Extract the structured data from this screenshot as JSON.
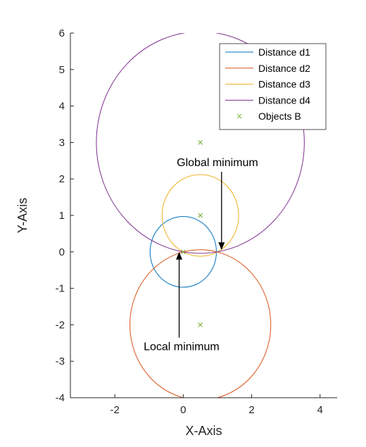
{
  "chart_data": {
    "type": "line",
    "title": "",
    "xlabel": "X-Axis",
    "ylabel": "Y-Axis",
    "xlim": [
      -3.3,
      4.5
    ],
    "ylim": [
      -4,
      6
    ],
    "xticks": [
      -2,
      0,
      2,
      4
    ],
    "yticks": [
      -4,
      -3,
      -2,
      -1,
      0,
      1,
      2,
      3,
      4,
      5,
      6
    ],
    "xtick_labels": [
      "-2",
      "0",
      "2",
      "4"
    ],
    "ytick_labels": [
      "-4",
      "-3",
      "-2",
      "-1",
      "0",
      "1",
      "2",
      "3",
      "4",
      "5",
      "6"
    ],
    "grid": false,
    "legend_position": "top-right",
    "series": [
      {
        "name": "Distance d1",
        "kind": "circle",
        "center": [
          0,
          0
        ],
        "radius": 0.97,
        "color": "#0072BD"
      },
      {
        "name": "Distance d2",
        "kind": "circle",
        "center": [
          0.5,
          -2
        ],
        "radius": 2.06,
        "color": "#D95319"
      },
      {
        "name": "Distance d3",
        "kind": "circle",
        "center": [
          0.5,
          1
        ],
        "radius": 1.12,
        "color": "#EDB120"
      },
      {
        "name": "Distance d4",
        "kind": "circle",
        "center": [
          0.5,
          3
        ],
        "radius": 3.04,
        "color": "#7E2F8E"
      },
      {
        "name": "Objects B",
        "kind": "markers",
        "marker": "x",
        "color": "#77AC30",
        "points": [
          [
            0,
            0
          ],
          [
            0.5,
            -2
          ],
          [
            0.5,
            1
          ],
          [
            0.5,
            3
          ]
        ]
      }
    ],
    "annotations": [
      {
        "text": "Global minimum",
        "text_at": [
          1.0,
          2.35
        ],
        "arrow_to": [
          1.12,
          0.05
        ]
      },
      {
        "text": "Local minimum",
        "text_at": [
          -0.05,
          -2.7
        ],
        "arrow_to": [
          -0.12,
          0.0
        ]
      }
    ]
  }
}
